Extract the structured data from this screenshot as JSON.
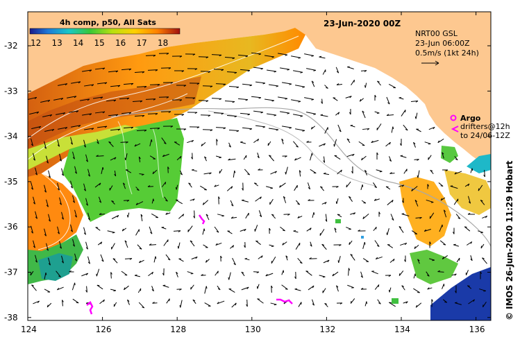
{
  "header": {
    "date_title": "23-Jun-2020 00Z"
  },
  "colorbar": {
    "title": "4h comp, p50, All Sats",
    "ticks": [
      "12",
      "13",
      "14",
      "15",
      "16",
      "17",
      "18"
    ]
  },
  "legend_current": {
    "line1": "NRT00 GSL",
    "line2": "23-Jun 06:00Z",
    "line3": "0.5m/s (1kt 24h)"
  },
  "legend_argo": {
    "title": "Argo",
    "line1": "drifters@12h",
    "line2": "to 24/06-12Z"
  },
  "side_credit": "© IMOS 26-Jun-2020 11:29 Hobart",
  "axes": {
    "x_ticks": [
      "124",
      "126",
      "128",
      "130",
      "132",
      "134",
      "136"
    ],
    "y_ticks": [
      "-32",
      "-33",
      "-34",
      "-35",
      "-36",
      "-37",
      "-38"
    ]
  },
  "colors": {
    "land": "#fdc890",
    "cold": "#1a2a9a",
    "warm": "#ff7a00",
    "argo": "#ff00ff"
  }
}
